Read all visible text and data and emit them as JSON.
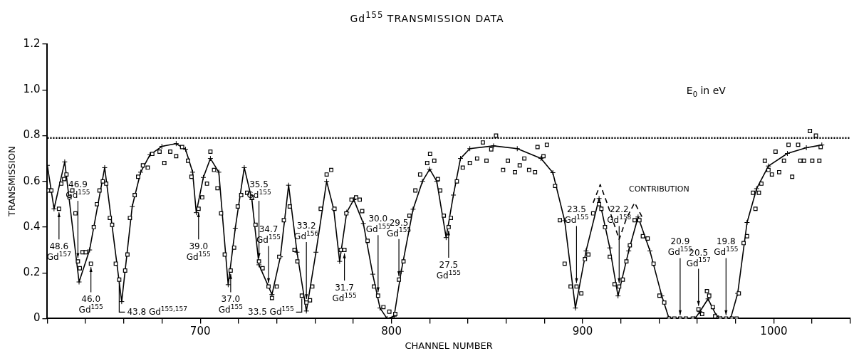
{
  "chart_data": {
    "type": "scatter",
    "title": "Gd$^{155}$ TRANSMISSION DATA",
    "xlabel": "CHANNEL NUMBER",
    "ylabel": "TRANSMISSION",
    "xlim": [
      620,
      1040
    ],
    "xticks": [
      {
        "value": 620,
        "label": null
      },
      {
        "value": 640,
        "label": null
      },
      {
        "value": 660,
        "label": null
      },
      {
        "value": 680,
        "label": null
      },
      700,
      {
        "value": 720,
        "label": null
      },
      {
        "value": 740,
        "label": null
      },
      {
        "value": 760,
        "label": null
      },
      {
        "value": 780,
        "label": null
      },
      800,
      {
        "value": 820,
        "label": null
      },
      {
        "value": 840,
        "label": null
      },
      {
        "value": 860,
        "label": null
      },
      {
        "value": 880,
        "label": null
      },
      900,
      {
        "value": 920,
        "label": null
      },
      {
        "value": 940,
        "label": null
      },
      {
        "value": 960,
        "label": null
      },
      {
        "value": 980,
        "label": null
      },
      1000,
      {
        "value": 1020,
        "label": null
      },
      {
        "value": 1040,
        "label": null
      }
    ],
    "ylim": [
      0,
      1.2
    ],
    "yticks": [
      0,
      0.2,
      0.4,
      0.6,
      0.8,
      {
        "value": 1,
        "label": "1.0"
      },
      1.2
    ],
    "grid": false,
    "legend": false,
    "ref_lines": [
      {
        "axis": "y",
        "value": 0.79,
        "color": "#000000",
        "line_style": "dotted"
      }
    ],
    "series": [
      {
        "type": "scatter",
        "color": "#000000",
        "marker": "square",
        "x": [
          620.7,
          622.1,
          626.1,
          627.3,
          628.8,
          630,
          631.6,
          633.1,
          634.7,
          636,
          637,
          638.4,
          640.1,
          642.8,
          644.3,
          645.9,
          647.3,
          649,
          650.8,
          652.7,
          653.9,
          655.8,
          657.6,
          660.7,
          661.9,
          663.2,
          665.7,
          667.5,
          670,
          672.5,
          674.9,
          678.7,
          681.2,
          684.3,
          687.4,
          690.5,
          693.6,
          695.4,
          699.1,
          701,
          703.5,
          705.3,
          707.2,
          709,
          710.9,
          712.8,
          715.9,
          717.7,
          719.6,
          721.4,
          724.5,
          727,
          728.9,
          730.7,
          732.6,
          735.7,
          737.5,
          740,
          741.3,
          743.7,
          746.8,
          749.3,
          750.8,
          753.1,
          755.5,
          757.4,
          758.6,
          763,
          766.1,
          768.5,
          770.2,
          773.5,
          775.4,
          776.4,
          779.1,
          781.5,
          783.4,
          784.7,
          787.5,
          790.8,
          793,
          795.8,
          798.9,
          802,
          803.9,
          806.3,
          809.4,
          812.5,
          815,
          818.7,
          820.2,
          822.4,
          824.3,
          825.5,
          827.4,
          829.9,
          831.1,
          834.2,
          837.3,
          841,
          844.8,
          847.8,
          849.7,
          852.2,
          854.7,
          858.4,
          860.9,
          864.6,
          867.1,
          869.5,
          872,
          875.1,
          876.4,
          879.5,
          881.3,
          885.6,
          888.1,
          890.6,
          893.7,
          896.8,
          899.3,
          901.2,
          903,
          905.5,
          908.6,
          909.8,
          911.7,
          914.2,
          916.7,
          919.1,
          921,
          922.9,
          924.7,
          927.2,
          929.7,
          931.5,
          934,
          937.1,
          940.2,
          942.7,
          945.2,
          948,
          951,
          954,
          957.6,
          960.6,
          962.5,
          965,
          966.2,
          968.1,
          969.3,
          972,
          975,
          978,
          980.5,
          981.7,
          984.2,
          986,
          989.1,
          990.4,
          992.2,
          993.5,
          995.3,
          997.2,
          999,
          1000.9,
          1002.8,
          1005.3,
          1007.7,
          1009.6,
          1012.7,
          1013.9,
          1015.8,
          1018.9,
          1020.1,
          1022,
          1023.8,
          1024.5
        ],
        "values": [
          0.56,
          0.56,
          0.48,
          0.59,
          0.61,
          0.63,
          0.53,
          0.56,
          0.46,
          0.25,
          0.22,
          0.29,
          0.29,
          0.24,
          0.4,
          0.5,
          0.56,
          0.6,
          0.59,
          0.44,
          0.41,
          0.24,
          0.17,
          0.21,
          0.28,
          0.44,
          0.54,
          0.62,
          0.67,
          0.66,
          0.72,
          0.73,
          0.68,
          0.73,
          0.71,
          0.75,
          0.69,
          0.62,
          0.48,
          0.53,
          0.59,
          0.73,
          0.65,
          0.57,
          0.46,
          0.28,
          0.21,
          0.31,
          0.49,
          0.54,
          0.55,
          0.53,
          0.41,
          0.25,
          0.22,
          0.14,
          0.09,
          0.14,
          0.27,
          0.43,
          0.49,
          0.3,
          0.25,
          0.1,
          0.07,
          0.08,
          0.14,
          0.48,
          0.63,
          0.65,
          0.48,
          0.3,
          0.3,
          0.46,
          0.52,
          0.53,
          0.52,
          0.47,
          0.34,
          0.14,
          0.1,
          0.05,
          0.03,
          0.02,
          0.17,
          0.25,
          0.45,
          0.56,
          0.63,
          0.68,
          0.72,
          0.69,
          0.61,
          0.56,
          0.45,
          0.4,
          0.44,
          0.6,
          0.66,
          0.68,
          0.7,
          0.77,
          0.69,
          0.74,
          0.8,
          0.65,
          0.69,
          0.64,
          0.67,
          0.7,
          0.65,
          0.64,
          0.75,
          0.71,
          0.76,
          0.58,
          0.43,
          0.24,
          0.14,
          0.14,
          0.11,
          0.26,
          0.28,
          0.46,
          0.5,
          0.48,
          0.4,
          0.27,
          0.15,
          0.14,
          0.17,
          0.25,
          0.32,
          0.43,
          0.43,
          0.36,
          0.35,
          0.24,
          0.1,
          0.07,
          0,
          0,
          0,
          0,
          0,
          0.04,
          0.02,
          0.12,
          0.1,
          0.05,
          0.01,
          0,
          0,
          0,
          0,
          0.11,
          0.33,
          0.36,
          0.55,
          0.48,
          0.55,
          0.59,
          0.69,
          0.65,
          0.63,
          0.73,
          0.64,
          0.69,
          0.76,
          0.62,
          0.76,
          0.69,
          0.69,
          0.82,
          0.69,
          0.8,
          0.69,
          0.75
        ]
      },
      {
        "type": "line",
        "color": "#000000",
        "marker": "cross",
        "line_style": "solid",
        "x": [
          620,
          623.5,
          629.1,
          636.6,
          642.1,
          650,
          658.9,
          664.4,
          668.8,
          673.7,
          679.9,
          687.4,
          692.3,
          696,
          697.9,
          701.6,
          705.3,
          709.7,
          714.6,
          718.3,
          723,
          727,
          730.7,
          737.5,
          741.9,
          746.2,
          750.6,
          755.5,
          760.5,
          766.1,
          769.8,
          772.9,
          776.6,
          780.3,
          785.3,
          790.2,
          794,
          797.7,
          801.4,
          805.1,
          811.3,
          816.2,
          820,
          823.7,
          828.6,
          832.4,
          836.1,
          841,
          853.4,
          865.8,
          878.2,
          884.4,
          890.6,
          896.2,
          901.8,
          908.6,
          914.2,
          918.5,
          924.1,
          929,
          935.2,
          941.4,
          945.2,
          958.8,
          961.3,
          965.6,
          970,
          972.4,
          977.4,
          981.1,
          986,
          991,
          997.2,
          1007.1,
          1017,
          1025.1
        ],
        "values": [
          0.67,
          0.48,
          0.685,
          0.16,
          0.3,
          0.66,
          0.074,
          0.49,
          0.64,
          0.716,
          0.753,
          0.765,
          0.74,
          0.64,
          0.463,
          0.617,
          0.7,
          0.64,
          0.148,
          0.395,
          0.66,
          0.52,
          0.235,
          0.105,
          0.27,
          0.583,
          0.29,
          0.033,
          0.29,
          0.6,
          0.478,
          0.25,
          0.465,
          0.52,
          0.416,
          0.194,
          0.046,
          0,
          0.01,
          0.206,
          0.478,
          0.6,
          0.653,
          0.6,
          0.354,
          0.54,
          0.7,
          0.743,
          0.755,
          0.743,
          0.7,
          0.638,
          0.428,
          0.046,
          0.296,
          0.525,
          0.309,
          0.099,
          0.296,
          0.444,
          0.296,
          0.099,
          0,
          0,
          0.03,
          0.086,
          0.012,
          0,
          0,
          0.11,
          0.42,
          0.568,
          0.667,
          0.722,
          0.747,
          0.759
        ]
      },
      {
        "type": "line",
        "color": "#000000",
        "marker": "none",
        "line_style": "dashed",
        "x": [
          905.5,
          909.2,
          913,
          919.1,
          923,
          927.2,
          931.5
        ],
        "values": [
          0.506,
          0.586,
          0.5,
          0.346,
          0.44,
          0.506,
          0.438
        ]
      }
    ],
    "annotations": [
      "E$_{0}$ in eV",
      {
        "text": "CONTRIBUTION",
        "x": 927.2,
        "y": 0.506
      },
      {
        "text": "48.6\nGd$^{157}$",
        "x": 626.1,
        "y": 0.48
      },
      {
        "text": "46.9\nGd$^{155}$",
        "x": 636,
        "y": 0.25
      },
      {
        "text": "46.0\nGd$^{155}$",
        "x": 642.8,
        "y": 0.24
      },
      {
        "text": "43.8 Gd$^{155,157}$",
        "x": 657.6,
        "y": 0.17
      },
      {
        "text": "39.0\nGd$^{155}$",
        "x": 699.1,
        "y": 0.48
      },
      {
        "text": "37.0\nGd$^{155}$",
        "x": 715.9,
        "y": 0.21
      },
      {
        "text": "35.5\nGd$^{155}$",
        "x": 730.7,
        "y": 0.25
      },
      {
        "text": "34.7\nGd$^{155}$",
        "x": 735.7,
        "y": 0.14
      },
      {
        "text": "33.5 Gd$^{155}$",
        "x": 753.1,
        "y": 0.1
      },
      {
        "text": "33.2\nGd$^{156}$",
        "x": 755.5,
        "y": 0.07
      },
      {
        "text": "31.7\nGd$^{155}$",
        "x": 775.4,
        "y": 0.3
      },
      {
        "text": "30.0\nGd$^{155}$",
        "x": 793,
        "y": 0.1
      },
      {
        "text": "29.5\nGd$^{155}$",
        "x": 803.9,
        "y": 0.17
      },
      {
        "text": "27.5\nGd$^{155}$",
        "x": 829.9,
        "y": 0.4
      },
      {
        "text": "23.5\nGd$^{155}$",
        "x": 896.8,
        "y": 0.14
      },
      {
        "text": "22.2\nGd$^{158}$",
        "x": 919.1,
        "y": 0.14
      },
      {
        "text": "20.9\nGd$^{155}$",
        "x": 951,
        "y": 0
      },
      {
        "text": "20.5\nGd$^{157}$",
        "x": 960.6,
        "y": 0.04
      },
      {
        "text": "19.8\nGd$^{155}$",
        "x": 975,
        "y": 0
      }
    ]
  }
}
